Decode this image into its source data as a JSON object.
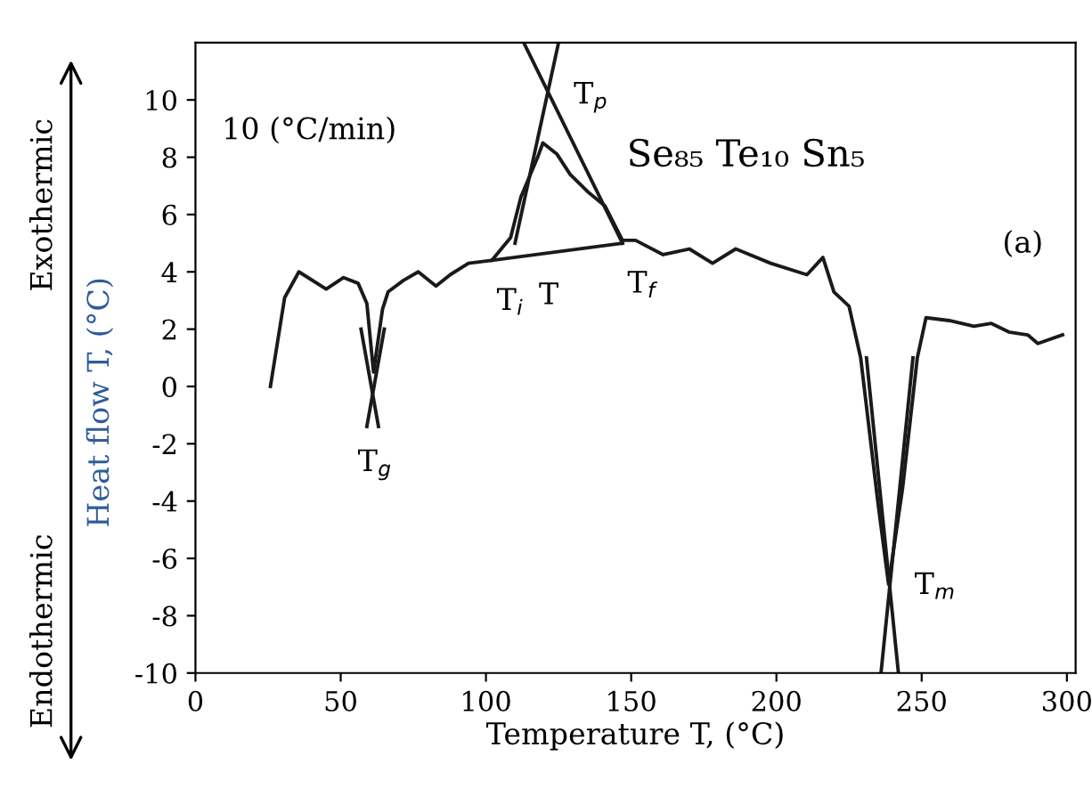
{
  "chart_data": {
    "type": "line",
    "xlabel": "Temperature T, (°C)",
    "ylabel": "Heat flow T, (°C)",
    "xlim": [
      0,
      303
    ],
    "ylim": [
      -10,
      12
    ],
    "xticks": [
      0,
      50,
      100,
      150,
      200,
      250,
      300
    ],
    "yticks": [
      -10,
      -8,
      -6,
      -4,
      -2,
      0,
      2,
      4,
      6,
      8,
      10
    ],
    "grid": false,
    "legend": false,
    "marker": "none",
    "line_style": "solid",
    "series": [
      {
        "color": "#1a1a1a",
        "x": [
          25.8,
          30.7,
          35.6,
          45,
          51,
          56,
          59,
          61.3,
          64.4,
          66.3,
          71.6,
          76.7,
          82.8,
          87.7,
          94,
          102,
          108.5,
          112,
          117.8,
          119.6,
          124.5,
          129,
          135,
          141,
          147,
          151.5,
          161,
          170,
          178,
          186,
          198,
          210.5,
          216,
          219.8,
          225,
          229,
          235,
          238.6,
          243.5,
          248.5,
          251.5,
          259.5,
          268,
          274,
          280,
          286.5,
          290,
          298.5
        ],
        "values": [
          0,
          3.1,
          4.0,
          3.4,
          3.8,
          3.6,
          2.9,
          0.5,
          2.7,
          3.3,
          3.7,
          4.0,
          3.5,
          3.9,
          4.3,
          4.4,
          5.2,
          6.6,
          8.0,
          8.5,
          8.1,
          7.4,
          6.8,
          6.3,
          5.1,
          5.1,
          4.6,
          4.8,
          4.3,
          4.8,
          4.3,
          3.9,
          4.5,
          3.3,
          2.8,
          1.0,
          -4.1,
          -6.9,
          -3.5,
          1.0,
          2.4,
          2.3,
          2.1,
          2.2,
          1.9,
          1.8,
          1.5,
          1.8
        ]
      },
      {
        "color": "#1a1a1a",
        "x": [
          102,
          147
        ],
        "values": [
          4.4,
          5.0
        ]
      },
      {
        "color": "#1a1a1a",
        "x": [
          110,
          125
        ],
        "values": [
          5.0,
          12
        ]
      },
      {
        "color": "#1a1a1a",
        "x": [
          113,
          147
        ],
        "values": [
          12,
          5.0
        ]
      },
      {
        "color": "#1a1a1a",
        "x": [
          57,
          63
        ],
        "values": [
          2.0,
          -1.4
        ]
      },
      {
        "color": "#1a1a1a",
        "x": [
          65,
          59
        ],
        "values": [
          2.0,
          -1.4
        ]
      },
      {
        "color": "#1a1a1a",
        "x": [
          231,
          242
        ],
        "values": [
          1.0,
          -10
        ]
      },
      {
        "color": "#1a1a1a",
        "x": [
          247,
          236
        ],
        "values": [
          1.0,
          -10
        ]
      }
    ],
    "annotations": [
      "10 (°C/min)",
      "Se₈₅ Te₁₀ Sn₅",
      "(a)",
      "Exothermic",
      "Endothermic",
      {
        "text": "T$_{g}$",
        "x": 61,
        "y": 0.5
      },
      {
        "text": "T$_{p}$",
        "x": 120,
        "y": 9.7
      },
      {
        "text": "T$_{i}$",
        "x": 102,
        "y": 4.4
      },
      {
        "text": "T",
        "x": 116.5,
        "y": 4.6
      },
      {
        "text": "T$_{f}$",
        "x": 147,
        "y": 5.0
      },
      {
        "text": "T$_{m}$",
        "x": 239,
        "y": -6.9
      }
    ]
  }
}
